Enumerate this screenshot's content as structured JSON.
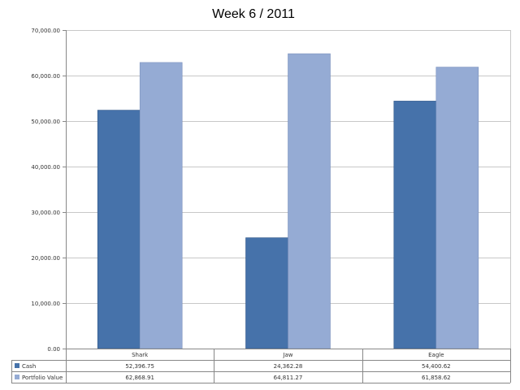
{
  "chart_data": {
    "type": "bar",
    "title": "Week 6 / 2011",
    "categories": [
      "Shark",
      "Jaw",
      "Eagle"
    ],
    "series": [
      {
        "name": "Cash",
        "values": [
          52396.75,
          24362.28,
          54400.62
        ],
        "display": [
          "52,396.75",
          "24,362.28",
          "54,400.62"
        ],
        "color": "#4672aa"
      },
      {
        "name": "Portfolio Value",
        "values": [
          62868.91,
          64811.27,
          61858.62
        ],
        "display": [
          "62,868.91",
          "64,811.27",
          "61,858.62"
        ],
        "color": "#95abd4"
      }
    ],
    "ylim": [
      0,
      70000
    ],
    "yticks": [
      0,
      10000,
      20000,
      30000,
      40000,
      50000,
      60000,
      70000
    ],
    "ytick_labels": [
      "0.00",
      "10,000.00",
      "20,000.00",
      "30,000.00",
      "40,000.00",
      "50,000.00",
      "60,000.00",
      "70,000.00"
    ],
    "grid": true,
    "legend": "data-table"
  }
}
